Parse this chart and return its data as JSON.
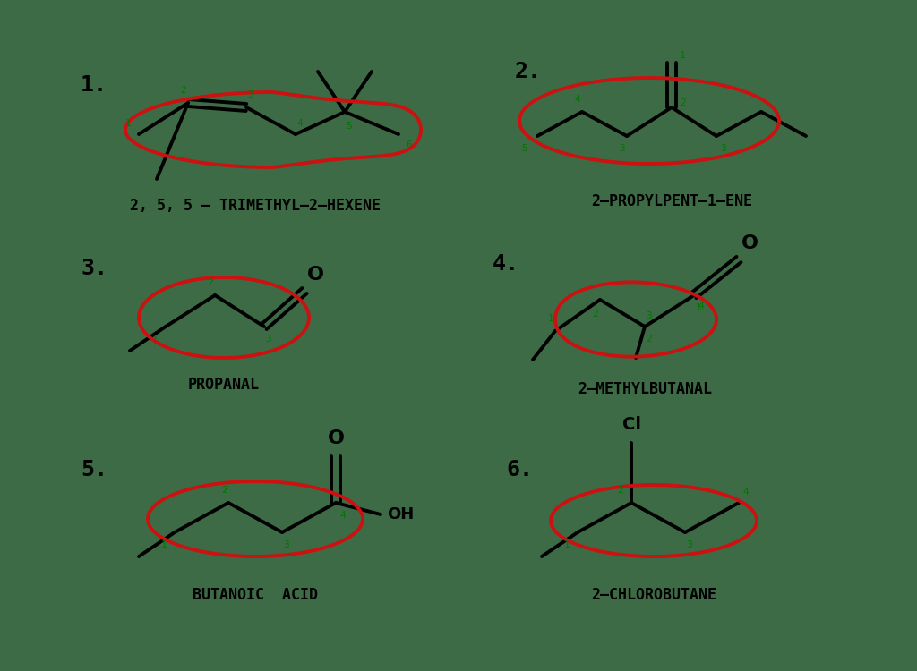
{
  "background_color": "#3d6b45",
  "line_color": "#000000",
  "red_color": "#cc1111",
  "green_color": "#007700",
  "label_color": "#000000",
  "compounds": [
    {
      "number": "1.",
      "name": "2, 5, 5 – TRIMETHYL–2–HEXENE"
    },
    {
      "number": "2.",
      "name": "2–PROPYLPENT–1–ENE"
    },
    {
      "number": "3.",
      "name": "PROPANAL"
    },
    {
      "number": "4.",
      "name": "2–METHYLBUTANAL"
    },
    {
      "number": "5.",
      "name": "BUTANOIC  ACID"
    },
    {
      "number": "6.",
      "name": "2–CHLOROBUTANE"
    }
  ]
}
